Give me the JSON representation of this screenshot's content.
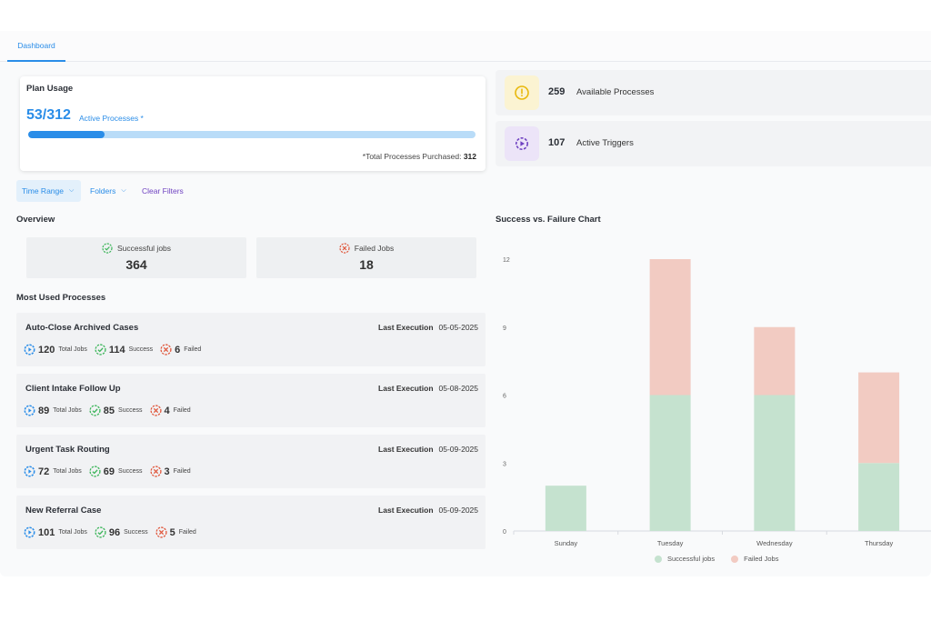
{
  "tabs": [
    {
      "label": "Dashboard"
    }
  ],
  "plan": {
    "title": "Plan Usage",
    "count": "53/312",
    "count_label": "Active Processes *",
    "progress_fraction": 0.17,
    "purchased_label": "*Total Processes Purchased:",
    "purchased_value": "312"
  },
  "stats": {
    "available": {
      "value": "259",
      "label": "Available Processes",
      "icon": "warning-icon"
    },
    "triggers": {
      "value": "107",
      "label": "Active Triggers",
      "icon": "gear-play-icon"
    }
  },
  "filters": {
    "time_range": "Time Range",
    "folders": "Folders",
    "clear": "Clear Filters"
  },
  "overview": {
    "title": "Overview",
    "successful": {
      "label": "Successful jobs",
      "value": "364"
    },
    "failed": {
      "label": "Failed Jobs",
      "value": "18"
    }
  },
  "most_used": {
    "title": "Most Used Processes",
    "exec_label": "Last Execution",
    "total_label": "Total Jobs",
    "success_label": "Success",
    "failed_label": "Failed",
    "items": [
      {
        "name": "Auto-Close Archived Cases",
        "date": "05-05-2025",
        "total": "120",
        "success": "114",
        "failed": "6"
      },
      {
        "name": "Client Intake Follow Up",
        "date": "05-08-2025",
        "total": "89",
        "success": "85",
        "failed": "4"
      },
      {
        "name": "Urgent Task Routing",
        "date": "05-09-2025",
        "total": "72",
        "success": "69",
        "failed": "3"
      },
      {
        "name": "New Referral Case",
        "date": "05-09-2025",
        "total": "101",
        "success": "96",
        "failed": "5"
      }
    ]
  },
  "colors": {
    "accent": "#2a8de8",
    "success_bar": "#c5e2cf",
    "failed_bar": "#f2cbc2",
    "purple": "#6f42c1"
  },
  "chart_data": {
    "type": "bar",
    "stacked": true,
    "title": "Success vs. Failure Chart",
    "categories": [
      "Sunday",
      "Tuesday",
      "Wednesday",
      "Thursday"
    ],
    "series": [
      {
        "name": "Successful jobs",
        "values": [
          2,
          6,
          6,
          3
        ]
      },
      {
        "name": "Failed Jobs",
        "values": [
          0,
          6,
          3,
          4
        ]
      }
    ],
    "yticks": [
      "0",
      "3",
      "6",
      "9",
      "12"
    ],
    "ylim": [
      0,
      12
    ],
    "legend": "bottom"
  }
}
